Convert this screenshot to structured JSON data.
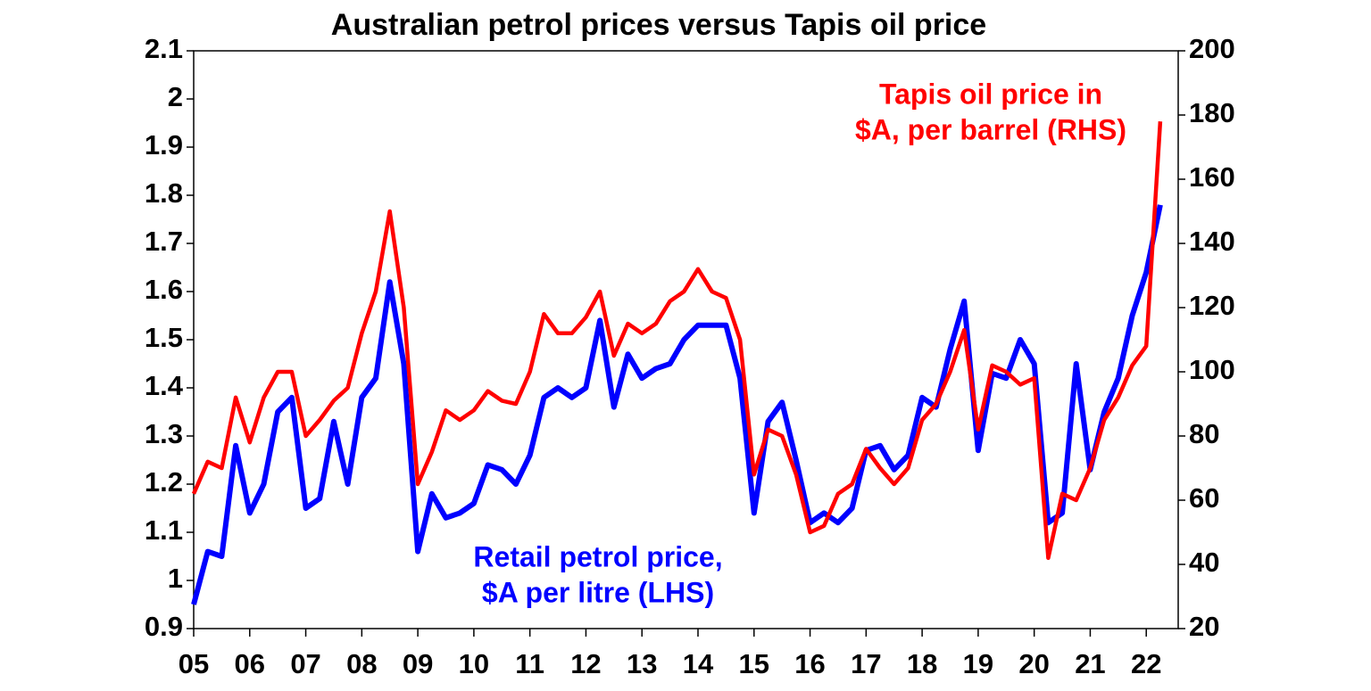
{
  "chart_data": {
    "type": "line",
    "title": "Australian petrol prices versus Tapis oil price",
    "x": [
      2005,
      2005.25,
      2005.5,
      2005.75,
      2006,
      2006.25,
      2006.5,
      2006.75,
      2007,
      2007.25,
      2007.5,
      2007.75,
      2008,
      2008.25,
      2008.5,
      2008.75,
      2009,
      2009.25,
      2009.5,
      2009.75,
      2010,
      2010.25,
      2010.5,
      2010.75,
      2011,
      2011.25,
      2011.5,
      2011.75,
      2012,
      2012.25,
      2012.5,
      2012.75,
      2013,
      2013.25,
      2013.5,
      2013.75,
      2014,
      2014.25,
      2014.5,
      2014.75,
      2015,
      2015.25,
      2015.5,
      2015.75,
      2016,
      2016.25,
      2016.5,
      2016.75,
      2017,
      2017.25,
      2017.5,
      2017.75,
      2018,
      2018.25,
      2018.5,
      2018.75,
      2019,
      2019.25,
      2019.5,
      2019.75,
      2020,
      2020.25,
      2020.5,
      2020.75,
      2021,
      2021.25,
      2021.5,
      2021.75,
      2022,
      2022.25
    ],
    "series": [
      {
        "name": [
          "Retail petrol price,",
          "$A per litre (LHS)"
        ],
        "color": "#0000ff",
        "axis": "y",
        "values": [
          0.95,
          1.06,
          1.05,
          1.28,
          1.14,
          1.2,
          1.35,
          1.38,
          1.15,
          1.17,
          1.33,
          1.2,
          1.38,
          1.42,
          1.62,
          1.45,
          1.06,
          1.18,
          1.13,
          1.14,
          1.16,
          1.24,
          1.23,
          1.2,
          1.26,
          1.38,
          1.4,
          1.38,
          1.4,
          1.54,
          1.36,
          1.47,
          1.42,
          1.44,
          1.45,
          1.5,
          1.53,
          1.53,
          1.53,
          1.42,
          1.14,
          1.33,
          1.37,
          1.25,
          1.12,
          1.14,
          1.12,
          1.15,
          1.27,
          1.28,
          1.23,
          1.26,
          1.38,
          1.36,
          1.48,
          1.58,
          1.27,
          1.43,
          1.42,
          1.5,
          1.45,
          1.12,
          1.14,
          1.45,
          1.23,
          1.35,
          1.42,
          1.55,
          1.64,
          1.78
        ]
      },
      {
        "name": [
          "Tapis oil price in",
          "$A, per barrel (RHS)"
        ],
        "color": "#ff0000",
        "axis": "y2",
        "values": [
          62,
          72,
          70,
          92,
          78,
          92,
          100,
          100,
          80,
          85,
          91,
          95,
          112,
          125,
          150,
          120,
          65,
          75,
          88,
          85,
          88,
          94,
          91,
          90,
          100,
          118,
          112,
          112,
          117,
          125,
          105,
          115,
          112,
          115,
          122,
          125,
          132,
          125,
          123,
          110,
          68,
          82,
          80,
          68,
          50,
          52,
          62,
          65,
          76,
          70,
          65,
          70,
          85,
          90,
          100,
          113,
          82,
          102,
          100,
          96,
          98,
          42,
          62,
          60,
          70,
          85,
          92,
          102,
          108,
          178
        ]
      }
    ],
    "xlim": [
      2005,
      2022.57
    ],
    "xticks": [
      {
        "value": 2005,
        "label": "05"
      },
      {
        "value": 2006,
        "label": "06"
      },
      {
        "value": 2007,
        "label": "07"
      },
      {
        "value": 2008,
        "label": "08"
      },
      {
        "value": 2009,
        "label": "09"
      },
      {
        "value": 2010,
        "label": "10"
      },
      {
        "value": 2011,
        "label": "11"
      },
      {
        "value": 2012,
        "label": "12"
      },
      {
        "value": 2013,
        "label": "13"
      },
      {
        "value": 2014,
        "label": "14"
      },
      {
        "value": 2015,
        "label": "15"
      },
      {
        "value": 2016,
        "label": "16"
      },
      {
        "value": 2017,
        "label": "17"
      },
      {
        "value": 2018,
        "label": "18"
      },
      {
        "value": 2019,
        "label": "19"
      },
      {
        "value": 2020,
        "label": "20"
      },
      {
        "value": 2021,
        "label": "21"
      },
      {
        "value": 2022,
        "label": "22"
      }
    ],
    "ylim": [
      0.9,
      2.1
    ],
    "yticks": [
      0.9,
      1.0,
      1.1,
      1.2,
      1.3,
      1.4,
      1.5,
      1.6,
      1.7,
      1.8,
      1.9,
      2.0,
      2.1
    ],
    "y2lim": [
      20,
      200
    ],
    "y2ticks": [
      20,
      40,
      60,
      80,
      100,
      120,
      140,
      160,
      180,
      200
    ]
  }
}
